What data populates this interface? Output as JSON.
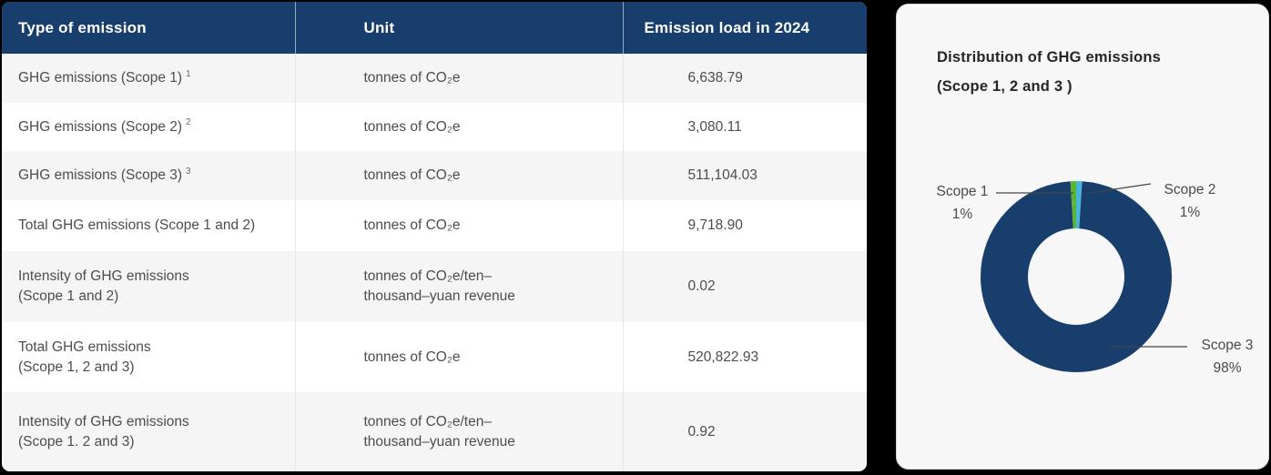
{
  "table": {
    "headers": [
      "Type of emission",
      "Unit",
      "Emission load in 2024"
    ],
    "rows": [
      {
        "label": "GHG emissions (Scope 1)",
        "sup": "1",
        "unit": "tonnes of CO₂e",
        "value": "6,638.79"
      },
      {
        "label": "GHG emissions (Scope 2)",
        "sup": "2",
        "unit": "tonnes of CO₂e",
        "value": "3,080.11"
      },
      {
        "label": "GHG emissions (Scope 3)",
        "sup": "3",
        "unit": "tonnes of CO₂e",
        "value": "511,104.03"
      },
      {
        "label": "Total GHG emissions (Scope 1 and 2)",
        "sup": "",
        "unit": "tonnes of CO₂e",
        "value": "9,718.90"
      },
      {
        "label": "Intensity of GHG emissions\n(Scope 1 and 2)",
        "sup": "",
        "unit": "tonnes of CO₂e/ten–\nthousand–yuan revenue",
        "value": "0.02"
      },
      {
        "label": "Total GHG emissions\n(Scope 1, 2 and 3)",
        "sup": "",
        "unit": "tonnes of CO₂e",
        "value": "520,822.93"
      },
      {
        "label": "Intensity of GHG emissions\n(Scope 1. 2 and 3)",
        "sup": "",
        "unit": "tonnes of CO₂e/ten–\nthousand–yuan revenue",
        "value": "0.92"
      }
    ]
  },
  "chart": {
    "title": "Distribution of GHG emissions\n(Scope 1, 2 and 3 )",
    "callouts": [
      {
        "label": "Scope 1",
        "value": "1%"
      },
      {
        "label": "Scope 2",
        "value": "1%"
      },
      {
        "label": "Scope 3",
        "value": "98%"
      }
    ]
  },
  "chart_data": {
    "type": "pie",
    "donut": true,
    "title": "Distribution of GHG emissions (Scope 1, 2 and 3 )",
    "labels": [
      "Scope 1",
      "Scope 2",
      "Scope 3"
    ],
    "values": [
      1,
      1,
      98
    ],
    "unit": "%",
    "colors": [
      "#5bb531",
      "#45b7db",
      "#173e6c"
    ],
    "segment_order": [
      1,
      2,
      0
    ],
    "legend_position": "callouts"
  },
  "theme": {
    "header_navy": "#173e6c",
    "zebra_gray": "#f5f5f6",
    "panel_gray": "#f7f7f7",
    "page_background": "#000000"
  }
}
